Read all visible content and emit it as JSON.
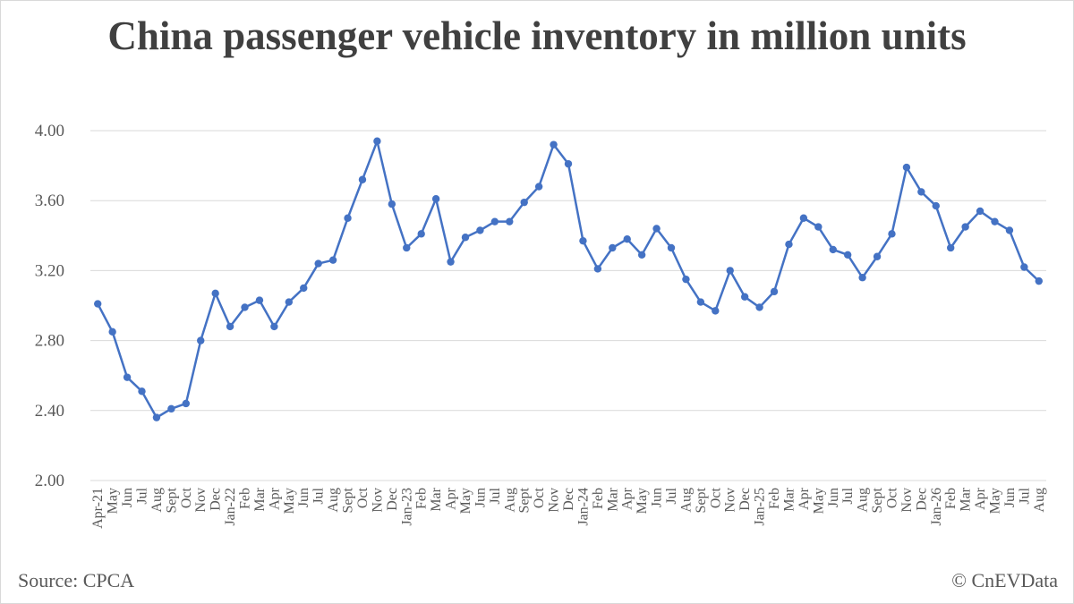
{
  "title": "China passenger vehicle inventory in million units",
  "source": "Source: CPCA",
  "credit": "© CnEVData",
  "colors": {
    "line": "#4472C4",
    "grid": "#d9d9d9",
    "text": "#595959",
    "title": "#404040"
  },
  "chart_data": {
    "type": "line",
    "title": "China passenger vehicle inventory in million units",
    "xlabel": "",
    "ylabel": "",
    "ylim": [
      2.0,
      4.0
    ],
    "yticks": [
      "2.00",
      "2.40",
      "2.80",
      "3.20",
      "3.60",
      "4.00"
    ],
    "grid": true,
    "legend": "none",
    "categories": [
      "Apr-21",
      "May",
      "Jun",
      "Jul",
      "Aug",
      "Sept",
      "Oct",
      "Nov",
      "Dec",
      "Jan-22",
      "Feb",
      "Mar",
      "Apr",
      "May",
      "Jun",
      "Jul",
      "Aug",
      "Sept",
      "Oct",
      "Nov",
      "Dec",
      "Jan-23",
      "Feb",
      "Mar",
      "Apr",
      "May",
      "Jun",
      "Jul",
      "Aug",
      "Sept",
      "Oct",
      "Nov",
      "Dec",
      "Jan-24",
      "Feb",
      "Mar",
      "Apr",
      "May",
      "Jun",
      "Jul",
      "Aug",
      "Sept",
      "Oct",
      "Nov",
      "Dec",
      "Jan-25",
      "Feb",
      "Mar",
      "Apr",
      "May",
      "Jun",
      "Jul",
      "Aug",
      "Sept",
      "Oct",
      "Nov",
      "Dec",
      "Jan-26",
      "Feb",
      "Mar",
      "Apr",
      "May",
      "Jun",
      "Jul",
      "Aug"
    ],
    "values": [
      3.01,
      2.85,
      2.59,
      2.51,
      2.36,
      2.41,
      2.44,
      2.8,
      3.07,
      2.88,
      2.99,
      3.03,
      2.88,
      3.02,
      3.1,
      3.24,
      3.26,
      3.5,
      3.72,
      3.94,
      3.58,
      3.33,
      3.41,
      3.61,
      3.25,
      3.39,
      3.43,
      3.48,
      3.48,
      3.59,
      3.68,
      3.92,
      3.81,
      3.37,
      3.21,
      3.33,
      3.38,
      3.29,
      3.44,
      3.33,
      3.15,
      3.02,
      2.97,
      3.2,
      3.05,
      2.99,
      3.08,
      3.35,
      3.5,
      3.45,
      3.32,
      3.29,
      3.16,
      3.28,
      3.41,
      3.79,
      3.65,
      3.57,
      3.33,
      3.45,
      3.54,
      3.48,
      3.43,
      3.22,
      3.14
    ]
  }
}
